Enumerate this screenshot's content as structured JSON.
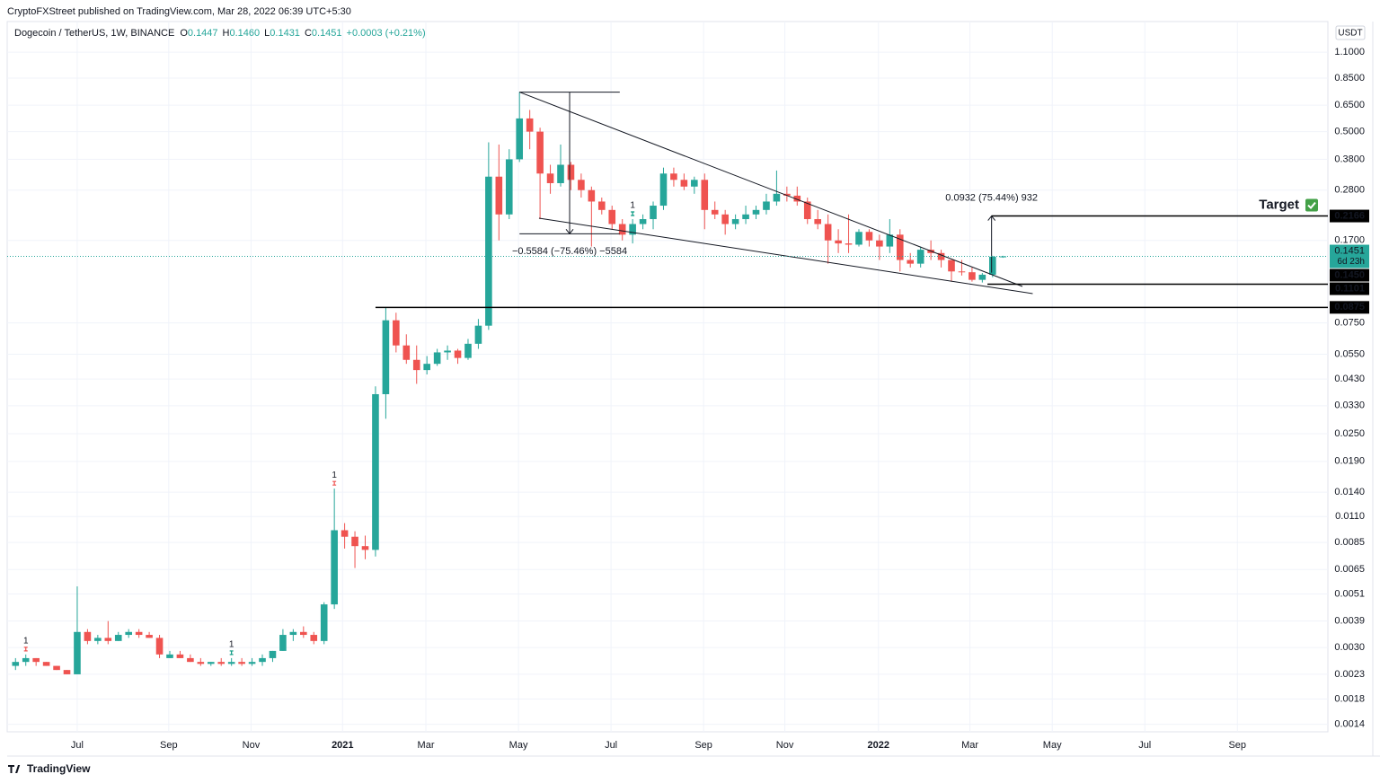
{
  "published": "CryptoFXStreet published on TradingView.com, Mar 28, 2022 06:39 UTC+5:30",
  "brand": "TradingView",
  "chart_data": {
    "type": "candlestick",
    "title": "Dogecoin / TetherUS, 1W, BINANCE",
    "header_fields": [
      {
        "key": "O",
        "value": "0.1447"
      },
      {
        "key": "H",
        "value": "0.1460"
      },
      {
        "key": "L",
        "value": "0.1431"
      },
      {
        "key": "C",
        "value": "0.1451"
      }
    ],
    "header_change": "+0.0003 (+0.21%)",
    "currency": "USDT",
    "up_color": "#26a69a",
    "down_color": "#ef5350",
    "log_scale": true,
    "grid": true,
    "open": [
      0.0025,
      0.0026,
      0.0027,
      0.0026,
      0.0025,
      0.0024,
      0.0023,
      0.0035,
      0.0032,
      0.0033,
      0.0032,
      0.0034,
      0.0035,
      0.0034,
      0.0033,
      0.0027,
      0.0028,
      0.0027,
      0.0026,
      0.00255,
      0.0026,
      0.00255,
      0.0026,
      0.00255,
      0.0026,
      0.0027,
      0.0029,
      0.0034,
      0.0035,
      0.0034,
      0.0032,
      0.0046,
      0.0096,
      0.009,
      0.0082,
      0.0079,
      0.037,
      0.077,
      0.06,
      0.052,
      0.047,
      0.05,
      0.056,
      0.057,
      0.053,
      0.061,
      0.073,
      0.32,
      0.22,
      0.38,
      0.57,
      0.5,
      0.33,
      0.3,
      0.36,
      0.31,
      0.28,
      0.25,
      0.23,
      0.2,
      0.18,
      0.2,
      0.21,
      0.24,
      0.33,
      0.31,
      0.29,
      0.31,
      0.23,
      0.22,
      0.2,
      0.21,
      0.22,
      0.23,
      0.25,
      0.27,
      0.265,
      0.25,
      0.21,
      0.2,
      0.17,
      0.165,
      0.163,
      0.185,
      0.17,
      0.16,
      0.18,
      0.14,
      0.135,
      0.155,
      0.15,
      0.14,
      0.125,
      0.124,
      0.115,
      0.121,
      0.1447
    ],
    "high": [
      0.0027,
      0.0028,
      0.0027,
      0.0026,
      0.0025,
      0.0024,
      0.0055,
      0.0036,
      0.0034,
      0.0039,
      0.0035,
      0.0036,
      0.0036,
      0.0035,
      0.0034,
      0.0029,
      0.0029,
      0.0028,
      0.0027,
      0.0026,
      0.0027,
      0.0027,
      0.0027,
      0.0027,
      0.0028,
      0.0029,
      0.0036,
      0.0036,
      0.0037,
      0.0035,
      0.0047,
      0.0145,
      0.0103,
      0.0095,
      0.0091,
      0.04,
      0.087,
      0.083,
      0.067,
      0.06,
      0.054,
      0.058,
      0.06,
      0.058,
      0.064,
      0.078,
      0.45,
      0.44,
      0.42,
      0.74,
      0.62,
      0.52,
      0.36,
      0.44,
      0.37,
      0.33,
      0.29,
      0.26,
      0.24,
      0.21,
      0.21,
      0.22,
      0.25,
      0.35,
      0.35,
      0.33,
      0.32,
      0.33,
      0.25,
      0.23,
      0.22,
      0.24,
      0.24,
      0.27,
      0.34,
      0.29,
      0.29,
      0.26,
      0.23,
      0.22,
      0.19,
      0.22,
      0.19,
      0.19,
      0.18,
      0.21,
      0.19,
      0.15,
      0.16,
      0.17,
      0.155,
      0.14,
      0.14,
      0.13,
      0.123,
      0.146,
      0.146
    ],
    "low": [
      0.0024,
      0.0025,
      0.0025,
      0.0025,
      0.0024,
      0.0023,
      0.0023,
      0.0031,
      0.0031,
      0.0031,
      0.0032,
      0.0033,
      0.0033,
      0.0033,
      0.0027,
      0.0027,
      0.0027,
      0.0026,
      0.0025,
      0.0025,
      0.0025,
      0.0025,
      0.0025,
      0.0025,
      0.0025,
      0.0026,
      0.0029,
      0.0032,
      0.0033,
      0.0031,
      0.0031,
      0.0044,
      0.008,
      0.0066,
      0.0072,
      0.0074,
      0.029,
      0.056,
      0.05,
      0.041,
      0.045,
      0.049,
      0.052,
      0.05,
      0.052,
      0.058,
      0.07,
      0.17,
      0.21,
      0.37,
      0.42,
      0.21,
      0.27,
      0.29,
      0.28,
      0.26,
      0.16,
      0.22,
      0.19,
      0.17,
      0.165,
      0.19,
      0.19,
      0.23,
      0.29,
      0.28,
      0.27,
      0.19,
      0.21,
      0.18,
      0.19,
      0.2,
      0.21,
      0.22,
      0.24,
      0.25,
      0.24,
      0.2,
      0.19,
      0.135,
      0.15,
      0.15,
      0.16,
      0.16,
      0.14,
      0.15,
      0.125,
      0.13,
      0.13,
      0.14,
      0.13,
      0.113,
      0.12,
      0.113,
      0.112,
      0.118,
      0.1431
    ],
    "close": [
      0.0026,
      0.0027,
      0.0026,
      0.0025,
      0.0024,
      0.0023,
      0.0035,
      0.0032,
      0.0033,
      0.0032,
      0.0034,
      0.0035,
      0.0034,
      0.0033,
      0.0028,
      0.0028,
      0.0027,
      0.0026,
      0.00255,
      0.0026,
      0.00255,
      0.0026,
      0.00255,
      0.0026,
      0.0027,
      0.0029,
      0.0034,
      0.0035,
      0.0034,
      0.0032,
      0.0046,
      0.0096,
      0.009,
      0.0082,
      0.0079,
      0.037,
      0.077,
      0.06,
      0.052,
      0.047,
      0.05,
      0.056,
      0.057,
      0.053,
      0.061,
      0.073,
      0.32,
      0.22,
      0.38,
      0.57,
      0.5,
      0.33,
      0.3,
      0.36,
      0.31,
      0.28,
      0.25,
      0.23,
      0.2,
      0.18,
      0.2,
      0.21,
      0.24,
      0.33,
      0.31,
      0.29,
      0.31,
      0.23,
      0.22,
      0.2,
      0.21,
      0.22,
      0.23,
      0.25,
      0.27,
      0.265,
      0.25,
      0.21,
      0.2,
      0.17,
      0.165,
      0.163,
      0.185,
      0.17,
      0.16,
      0.18,
      0.14,
      0.135,
      0.155,
      0.15,
      0.14,
      0.125,
      0.124,
      0.115,
      0.121,
      0.1447,
      0.1451
    ],
    "xlim": [
      -0.81,
      127.6
    ],
    "xticks": [
      {
        "value": 6.0,
        "label": "Jul"
      },
      {
        "value": 14.9,
        "label": "Sep"
      },
      {
        "value": 22.9,
        "label": "Nov"
      },
      {
        "value": 31.8,
        "label": "2021"
      },
      {
        "value": 39.9,
        "label": "Mar"
      },
      {
        "value": 48.9,
        "label": "May"
      },
      {
        "value": 57.9,
        "label": "Jul"
      },
      {
        "value": 66.9,
        "label": "Sep"
      },
      {
        "value": 74.8,
        "label": "Nov"
      },
      {
        "value": 83.9,
        "label": "2022"
      },
      {
        "value": 92.8,
        "label": "Mar"
      },
      {
        "value": 100.8,
        "label": "May"
      },
      {
        "value": 109.8,
        "label": "Jul"
      },
      {
        "value": 118.8,
        "label": "Sep"
      }
    ],
    "ylim": [
      0.0013,
      1.49
    ],
    "yticks": [
      {
        "value": 1.1,
        "label": "1.1000"
      },
      {
        "value": 0.85,
        "label": "0.8500"
      },
      {
        "value": 0.65,
        "label": "0.6500"
      },
      {
        "value": 0.5,
        "label": "0.5000"
      },
      {
        "value": 0.38,
        "label": "0.3800"
      },
      {
        "value": 0.28,
        "label": "0.2800"
      },
      {
        "value": 0.17,
        "label": "0.1700"
      },
      {
        "value": 0.075,
        "label": "0.0750"
      },
      {
        "value": 0.055,
        "label": "0.0550"
      },
      {
        "value": 0.043,
        "label": "0.0430"
      },
      {
        "value": 0.033,
        "label": "0.0330"
      },
      {
        "value": 0.025,
        "label": "0.0250"
      },
      {
        "value": 0.019,
        "label": "0.0190"
      },
      {
        "value": 0.014,
        "label": "0.0140"
      },
      {
        "value": 0.011,
        "label": "0.0110"
      },
      {
        "value": 0.0085,
        "label": "0.0085"
      },
      {
        "value": 0.0065,
        "label": "0.0065"
      },
      {
        "value": 0.0051,
        "label": "0.0051"
      },
      {
        "value": 0.0039,
        "label": "0.0039"
      },
      {
        "value": 0.003,
        "label": "0.0030"
      },
      {
        "value": 0.0023,
        "label": "0.0023"
      },
      {
        "value": 0.0018,
        "label": "0.0018"
      },
      {
        "value": 0.0014,
        "label": "0.0014"
      }
    ],
    "last_price": {
      "value": 0.1451,
      "countdown": "6d 23h"
    },
    "levels": [
      {
        "value": 0.2166,
        "label": "0.2166",
        "start": 94.9
      },
      {
        "value": 0.145,
        "label": "0.1450"
      },
      {
        "value": 0.1101,
        "label": "0.1101",
        "start": 94.5
      },
      {
        "value": 0.0875,
        "label": "0.0875",
        "start": 35
      }
    ],
    "target_label": "Target",
    "trendlines": [
      {
        "x": [
          49,
          97.9
        ],
        "y": [
          0.74,
          0.1077
        ]
      },
      {
        "x": [
          50.9,
          98.9
        ],
        "y": [
          0.212,
          0.1003
        ]
      }
    ],
    "measures": [
      {
        "x": [
          49,
          58.75
        ],
        "from": 0.74,
        "to": 0.1816,
        "label": "−0.5584 (−75.46%) −5584"
      },
      {
        "x": [
          94.9,
          94.9
        ],
        "from": 0.1235,
        "to": 0.2166,
        "label": "0.0932 (75.44%) 932"
      }
    ],
    "signals": [
      {
        "index": 1,
        "label": "1",
        "color": "#ef5350"
      },
      {
        "index": 21,
        "label": "1",
        "color": "#089981"
      },
      {
        "index": 31,
        "label": "1",
        "color": "#ef5350"
      },
      {
        "index": 60,
        "label": "1",
        "color": "#089981"
      }
    ]
  }
}
